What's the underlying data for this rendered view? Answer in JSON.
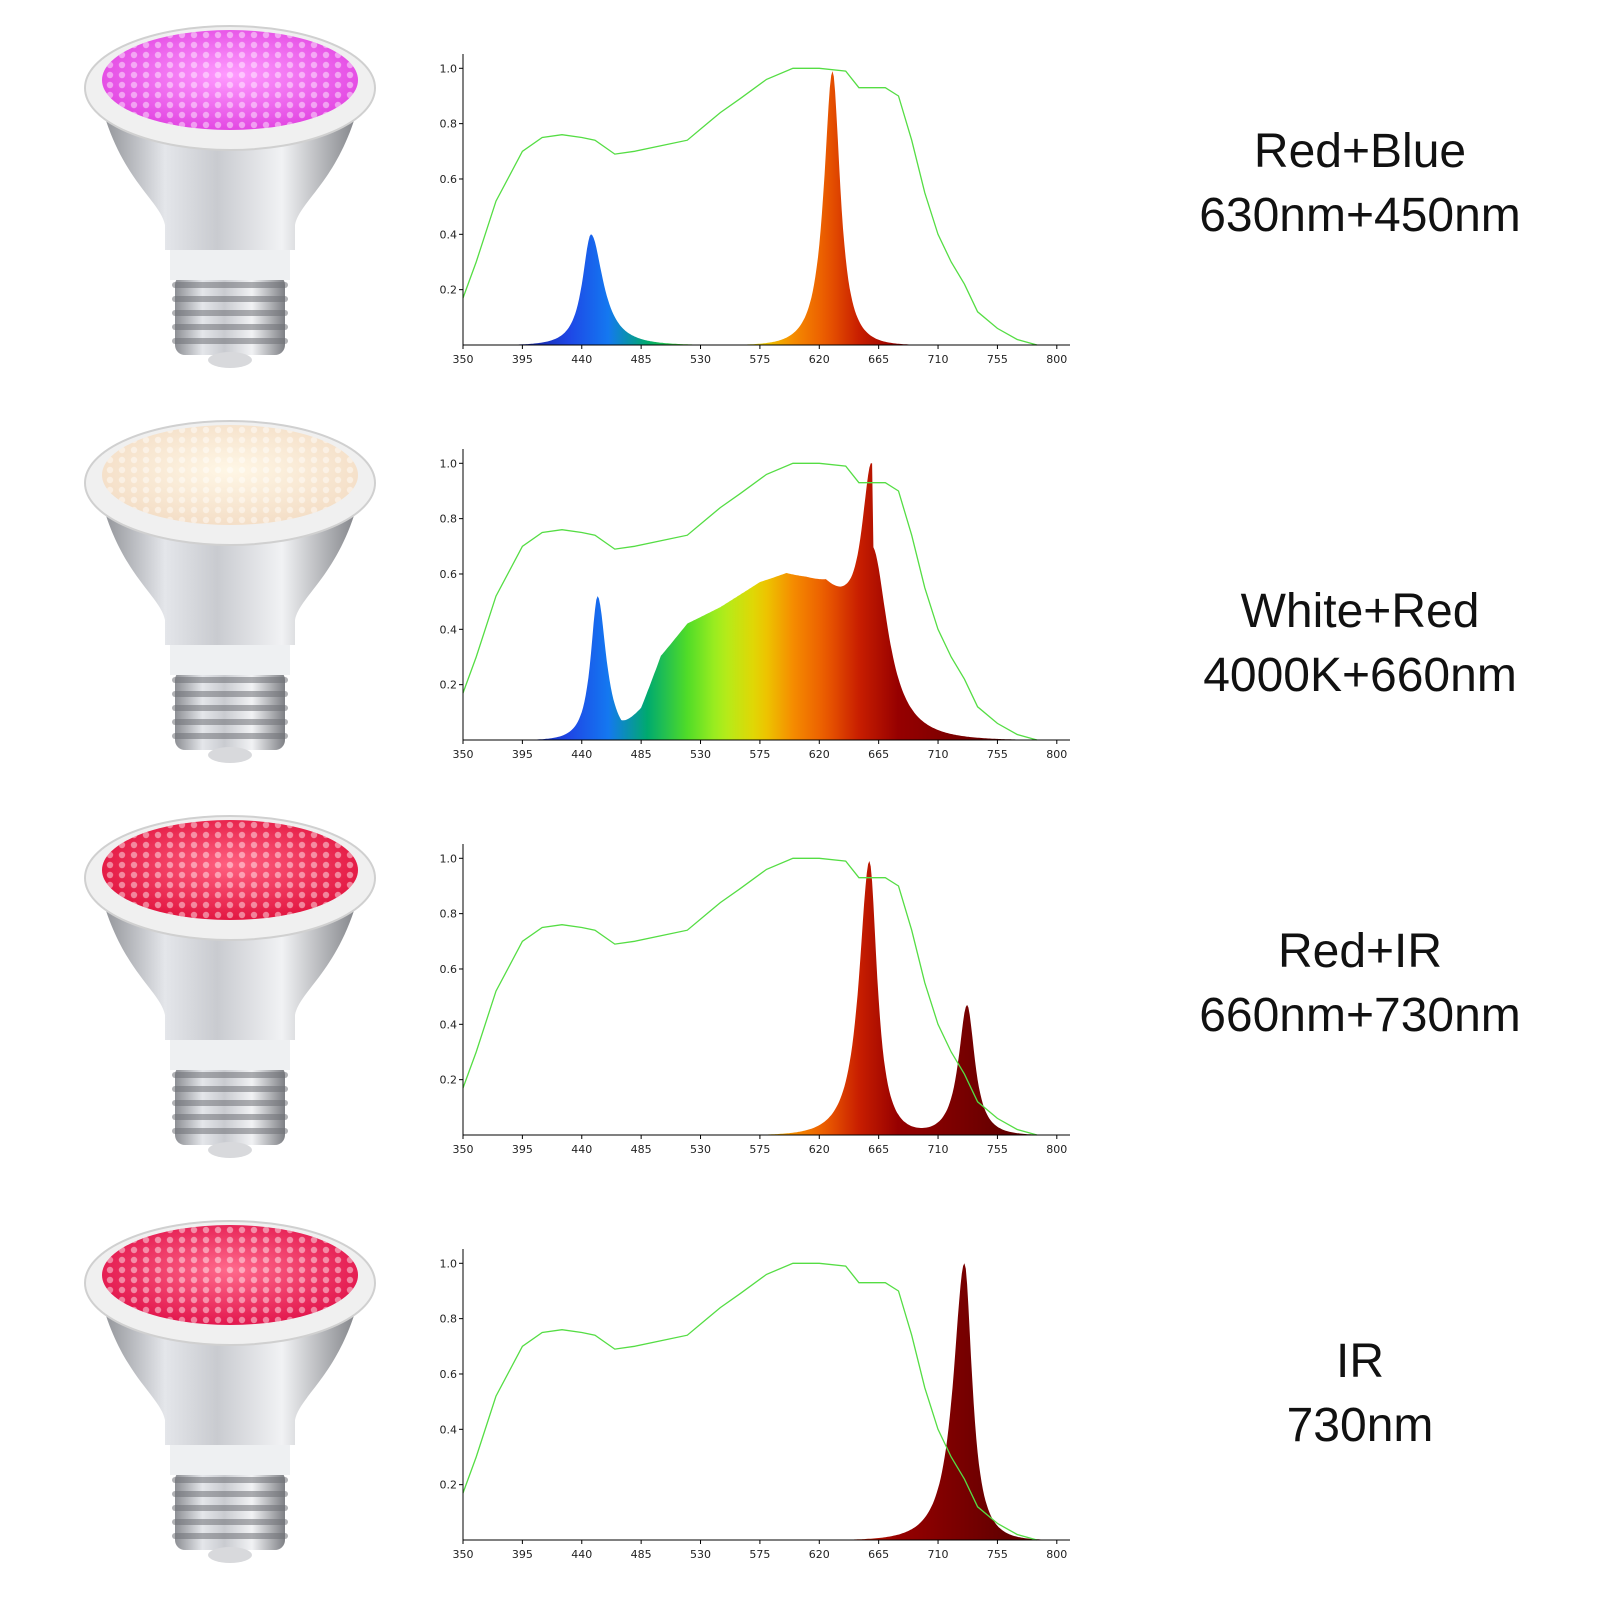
{
  "colors": {
    "reference_curve": "#55dd44",
    "axis": "#000000"
  },
  "rows": [
    {
      "title_line1": "Red+Blue",
      "title_line2": "630nm+450nm",
      "bulb_color": "#e040e0",
      "bulb_glow": "#ff9cff"
    },
    {
      "title_line1": "White+Red",
      "title_line2": "4000K+660nm",
      "bulb_color": "#f3dcc4",
      "bulb_glow": "#fff7e6"
    },
    {
      "title_line1": "Red+IR",
      "title_line2": "660nm+730nm",
      "bulb_color": "#e0103c",
      "bulb_glow": "#ff6080"
    },
    {
      "title_line1": "IR",
      "title_line2": "730nm",
      "bulb_color": "#e01048",
      "bulb_glow": "#ff6a8c"
    }
  ],
  "chart_data": [
    {
      "type": "area",
      "x_ticks": [
        350,
        395,
        440,
        485,
        530,
        575,
        620,
        665,
        710,
        755,
        800
      ],
      "y_ticks": [
        "0.2",
        "0.4",
        "0.6",
        "0.8",
        "1.0"
      ],
      "xlim": [
        350,
        810
      ],
      "ylim": [
        0,
        1.03
      ],
      "reference_curve": {
        "x": [
          350,
          360,
          375,
          395,
          410,
          425,
          440,
          450,
          465,
          480,
          500,
          520,
          535,
          545,
          560,
          580,
          600,
          620,
          640,
          650,
          670,
          680,
          690,
          700,
          710,
          720,
          730,
          740,
          755,
          770,
          785
        ],
        "y": [
          0.17,
          0.3,
          0.52,
          0.7,
          0.75,
          0.76,
          0.75,
          0.74,
          0.69,
          0.7,
          0.72,
          0.74,
          0.8,
          0.84,
          0.89,
          0.96,
          1.0,
          1.0,
          0.99,
          0.93,
          0.93,
          0.9,
          0.74,
          0.55,
          0.4,
          0.3,
          0.22,
          0.12,
          0.06,
          0.02,
          0.0
        ]
      },
      "peaks": [
        {
          "center": 447,
          "height": 0.4,
          "width_left": 10,
          "width_right": 14
        },
        {
          "center": 630,
          "height": 0.99,
          "width_left": 10,
          "width_right": 9
        }
      ],
      "broadband": []
    },
    {
      "type": "area",
      "x_ticks": [
        350,
        395,
        440,
        485,
        530,
        575,
        620,
        665,
        710,
        755,
        800
      ],
      "y_ticks": [
        "0.2",
        "0.4",
        "0.6",
        "0.8",
        "1.0"
      ],
      "xlim": [
        350,
        810
      ],
      "ylim": [
        0,
        1.03
      ],
      "reference_curve": {
        "x": [
          350,
          360,
          375,
          395,
          410,
          425,
          440,
          450,
          465,
          480,
          500,
          520,
          535,
          545,
          560,
          580,
          600,
          620,
          640,
          650,
          670,
          680,
          690,
          700,
          710,
          720,
          730,
          740,
          755,
          770,
          785
        ],
        "y": [
          0.17,
          0.3,
          0.52,
          0.7,
          0.75,
          0.76,
          0.75,
          0.74,
          0.69,
          0.7,
          0.72,
          0.74,
          0.8,
          0.84,
          0.89,
          0.96,
          1.0,
          1.0,
          0.99,
          0.93,
          0.93,
          0.9,
          0.74,
          0.55,
          0.4,
          0.3,
          0.22,
          0.12,
          0.06,
          0.02,
          0.0
        ]
      },
      "peaks": [
        {
          "center": 452,
          "height": 0.52,
          "width_left": 8,
          "width_right": 10
        },
        {
          "center": 660,
          "height": 0.7,
          "width_left": 12,
          "width_right": 18
        }
      ],
      "broadband": [
        {
          "x": [
            470,
            485,
            500,
            520,
            545,
            575,
            595,
            610,
            625,
            640,
            660
          ],
          "y": [
            0.0,
            0.1,
            0.3,
            0.42,
            0.48,
            0.57,
            0.6,
            0.58,
            0.55,
            0.45,
            0.3
          ]
        }
      ]
    },
    {
      "type": "area",
      "x_ticks": [
        350,
        395,
        440,
        485,
        530,
        575,
        620,
        665,
        710,
        755,
        800
      ],
      "y_ticks": [
        "0.2",
        "0.4",
        "0.6",
        "0.8",
        "1.0"
      ],
      "xlim": [
        350,
        810
      ],
      "ylim": [
        0,
        1.03
      ],
      "reference_curve": {
        "x": [
          350,
          360,
          375,
          395,
          410,
          425,
          440,
          450,
          465,
          480,
          500,
          520,
          535,
          545,
          560,
          580,
          600,
          620,
          640,
          650,
          670,
          680,
          690,
          700,
          710,
          720,
          730,
          740,
          755,
          770,
          785
        ],
        "y": [
          0.17,
          0.3,
          0.52,
          0.7,
          0.75,
          0.76,
          0.75,
          0.74,
          0.69,
          0.7,
          0.72,
          0.74,
          0.8,
          0.84,
          0.89,
          0.96,
          1.0,
          1.0,
          0.99,
          0.93,
          0.93,
          0.9,
          0.74,
          0.55,
          0.4,
          0.3,
          0.22,
          0.12,
          0.06,
          0.02,
          0.0
        ]
      },
      "peaks": [
        {
          "center": 658,
          "height": 0.99,
          "width_left": 12,
          "width_right": 9
        },
        {
          "center": 732,
          "height": 0.47,
          "width_left": 10,
          "width_right": 9
        }
      ],
      "broadband": []
    },
    {
      "type": "area",
      "x_ticks": [
        350,
        395,
        440,
        485,
        530,
        575,
        620,
        665,
        710,
        755,
        800
      ],
      "y_ticks": [
        "0.2",
        "0.4",
        "0.6",
        "0.8",
        "1.0"
      ],
      "xlim": [
        350,
        810
      ],
      "ylim": [
        0,
        1.03
      ],
      "reference_curve": {
        "x": [
          350,
          360,
          375,
          395,
          410,
          425,
          440,
          450,
          465,
          480,
          500,
          520,
          535,
          545,
          560,
          580,
          600,
          620,
          640,
          650,
          670,
          680,
          690,
          700,
          710,
          720,
          730,
          740,
          755,
          770,
          785
        ],
        "y": [
          0.17,
          0.3,
          0.52,
          0.7,
          0.75,
          0.76,
          0.75,
          0.74,
          0.69,
          0.7,
          0.72,
          0.74,
          0.8,
          0.84,
          0.89,
          0.96,
          1.0,
          1.0,
          0.99,
          0.93,
          0.93,
          0.9,
          0.74,
          0.55,
          0.4,
          0.3,
          0.22,
          0.12,
          0.06,
          0.02,
          0.0
        ]
      },
      "peaks": [
        {
          "center": 730,
          "height": 1.0,
          "width_left": 13,
          "width_right": 9
        }
      ],
      "broadband": []
    }
  ]
}
